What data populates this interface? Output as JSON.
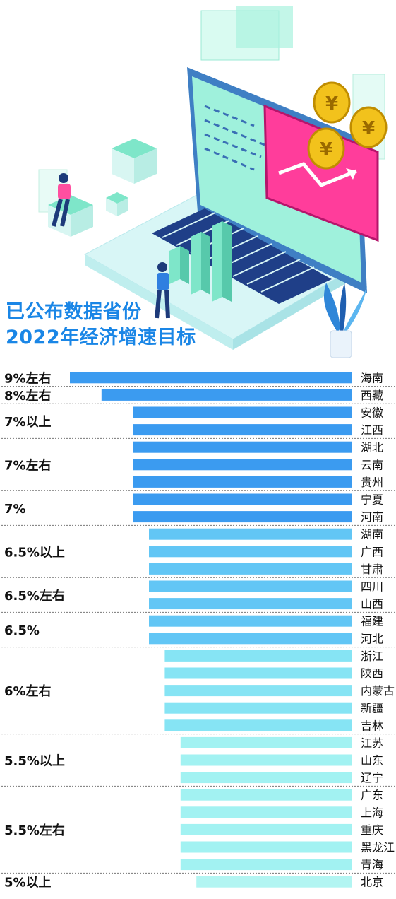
{
  "title_lines": [
    "已公布数据省份",
    "2022年经济增速目标"
  ],
  "chart_data": {
    "type": "bar",
    "orientation": "horizontal",
    "title": "已公布数据省份 2022年经济增速目标",
    "xlabel": "",
    "ylabel": "",
    "groups": [
      {
        "label": "9%左右",
        "value": 9,
        "color": "#3b9bf0",
        "provinces": [
          "海南"
        ]
      },
      {
        "label": "8%左右",
        "value": 8,
        "color": "#3b9bf0",
        "provinces": [
          "西藏"
        ]
      },
      {
        "label": "7%以上",
        "value": 7,
        "color": "#3b9bf0",
        "provinces": [
          "安徽",
          "江西"
        ]
      },
      {
        "label": "7%左右",
        "value": 7,
        "color": "#3b9bf0",
        "provinces": [
          "湖北",
          "云南",
          "贵州"
        ]
      },
      {
        "label": "7%",
        "value": 7,
        "color": "#3b9bf0",
        "provinces": [
          "宁夏",
          "河南"
        ]
      },
      {
        "label": "6.5%以上",
        "value": 6.5,
        "color": "#62c6f5",
        "provinces": [
          "湖南",
          "广西",
          "甘肃"
        ]
      },
      {
        "label": "6.5%左右",
        "value": 6.5,
        "color": "#62c6f5",
        "provinces": [
          "四川",
          "山西"
        ]
      },
      {
        "label": "6.5%",
        "value": 6.5,
        "color": "#62c6f5",
        "provinces": [
          "福建",
          "河北"
        ]
      },
      {
        "label": "6%左右",
        "value": 6,
        "color": "#86e4f4",
        "provinces": [
          "浙江",
          "陕西",
          "内蒙古",
          "新疆",
          "吉林"
        ]
      },
      {
        "label": "5.5%以上",
        "value": 5.5,
        "color": "#a2f2f2",
        "provinces": [
          "江苏",
          "山东",
          "辽宁"
        ]
      },
      {
        "label": "5.5%左右",
        "value": 5.5,
        "color": "#a2f2f2",
        "provinces": [
          "广东",
          "上海",
          "重庆",
          "黑龙江",
          "青海"
        ]
      },
      {
        "label": "5%以上",
        "value": 5,
        "color": "#b2f5f2",
        "provinces": [
          "北京"
        ]
      }
    ]
  }
}
